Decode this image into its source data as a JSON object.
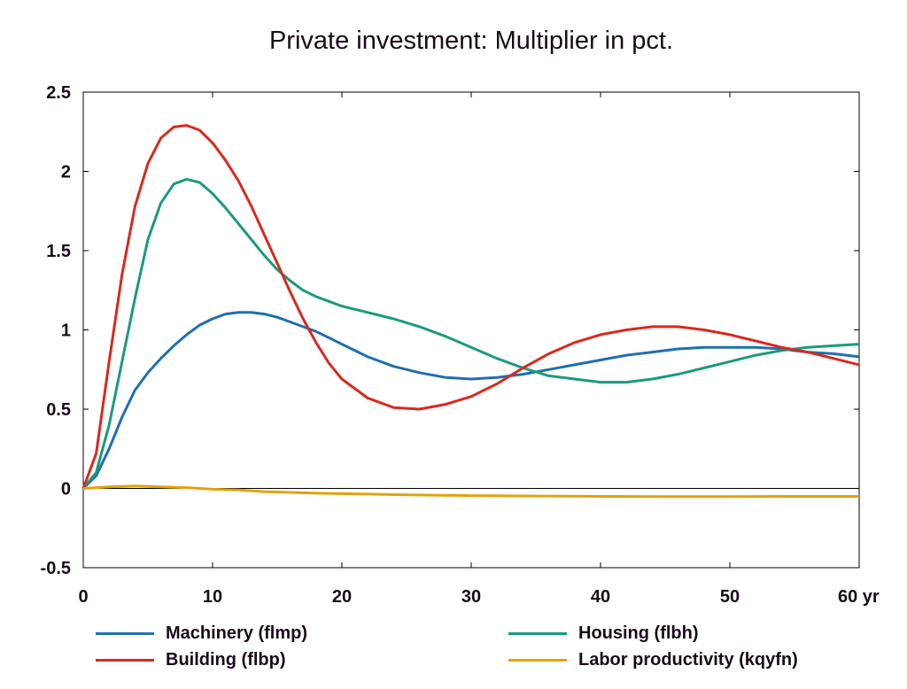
{
  "chart_data": {
    "type": "line",
    "title": "Private investment: Multiplier in pct.",
    "xlabel": "",
    "ylabel": "",
    "x_unit_label": "yr",
    "xlim": [
      0,
      60
    ],
    "ylim": [
      -0.5,
      2.5
    ],
    "x_ticks": [
      0,
      10,
      20,
      30,
      40,
      50,
      60
    ],
    "y_ticks": [
      -0.5,
      0,
      0.5,
      1,
      1.5,
      2,
      2.5
    ],
    "x_tick_labels": [
      "0",
      "10",
      "20",
      "30",
      "40",
      "50",
      "60 yr"
    ],
    "y_tick_labels": [
      "-0.5",
      "0",
      "0.5",
      "1",
      "1.5",
      "2",
      "2.5"
    ],
    "grid": false,
    "zero_line": true,
    "legend_position": "bottom",
    "series": [
      {
        "name": "Machinery (flmp)",
        "color": "#1f6fb0",
        "x": [
          0,
          1,
          2,
          3,
          4,
          5,
          6,
          7,
          8,
          9,
          10,
          11,
          12,
          13,
          14,
          15,
          16,
          17,
          18,
          19,
          20,
          22,
          24,
          26,
          28,
          30,
          32,
          34,
          36,
          38,
          40,
          42,
          44,
          46,
          48,
          50,
          52,
          54,
          56,
          58,
          60
        ],
        "y": [
          0,
          0.08,
          0.25,
          0.45,
          0.62,
          0.73,
          0.82,
          0.9,
          0.97,
          1.03,
          1.07,
          1.1,
          1.11,
          1.11,
          1.1,
          1.08,
          1.05,
          1.02,
          0.99,
          0.95,
          0.91,
          0.83,
          0.77,
          0.73,
          0.7,
          0.69,
          0.7,
          0.72,
          0.75,
          0.78,
          0.81,
          0.84,
          0.86,
          0.88,
          0.89,
          0.89,
          0.89,
          0.88,
          0.86,
          0.85,
          0.83
        ]
      },
      {
        "name": "Housing (flbh)",
        "color": "#199b7c",
        "x": [
          0,
          1,
          2,
          3,
          4,
          5,
          6,
          7,
          8,
          9,
          10,
          11,
          12,
          13,
          14,
          15,
          16,
          17,
          18,
          19,
          20,
          22,
          24,
          26,
          28,
          30,
          32,
          34,
          36,
          38,
          40,
          42,
          44,
          46,
          48,
          50,
          52,
          54,
          56,
          58,
          60
        ],
        "y": [
          0,
          0.1,
          0.4,
          0.8,
          1.2,
          1.57,
          1.8,
          1.92,
          1.95,
          1.93,
          1.86,
          1.77,
          1.67,
          1.57,
          1.47,
          1.38,
          1.31,
          1.25,
          1.21,
          1.18,
          1.15,
          1.11,
          1.07,
          1.02,
          0.96,
          0.89,
          0.82,
          0.76,
          0.71,
          0.69,
          0.67,
          0.67,
          0.69,
          0.72,
          0.76,
          0.8,
          0.84,
          0.87,
          0.89,
          0.9,
          0.91
        ]
      },
      {
        "name": "Building (flbp)",
        "color": "#d8291f",
        "x": [
          0,
          1,
          2,
          3,
          4,
          5,
          6,
          7,
          8,
          9,
          10,
          11,
          12,
          13,
          14,
          15,
          16,
          17,
          18,
          19,
          20,
          22,
          24,
          26,
          28,
          30,
          32,
          34,
          36,
          38,
          40,
          42,
          44,
          46,
          48,
          50,
          52,
          54,
          56,
          58,
          60
        ],
        "y": [
          0,
          0.22,
          0.8,
          1.35,
          1.78,
          2.05,
          2.21,
          2.28,
          2.29,
          2.26,
          2.18,
          2.07,
          1.94,
          1.78,
          1.6,
          1.42,
          1.24,
          1.07,
          0.92,
          0.79,
          0.69,
          0.57,
          0.51,
          0.5,
          0.53,
          0.58,
          0.66,
          0.76,
          0.85,
          0.92,
          0.97,
          1.0,
          1.02,
          1.02,
          1.0,
          0.97,
          0.93,
          0.89,
          0.86,
          0.82,
          0.78
        ]
      },
      {
        "name": "Labor productivity (kqyfn)",
        "color": "#e2a20c",
        "x": [
          0,
          2,
          4,
          6,
          8,
          10,
          12,
          14,
          16,
          18,
          20,
          25,
          30,
          35,
          40,
          45,
          50,
          55,
          60
        ],
        "y": [
          0,
          0.01,
          0.015,
          0.01,
          0.005,
          -0.005,
          -0.01,
          -0.02,
          -0.025,
          -0.03,
          -0.033,
          -0.04,
          -0.045,
          -0.048,
          -0.05,
          -0.052,
          -0.052,
          -0.05,
          -0.05
        ]
      }
    ]
  }
}
